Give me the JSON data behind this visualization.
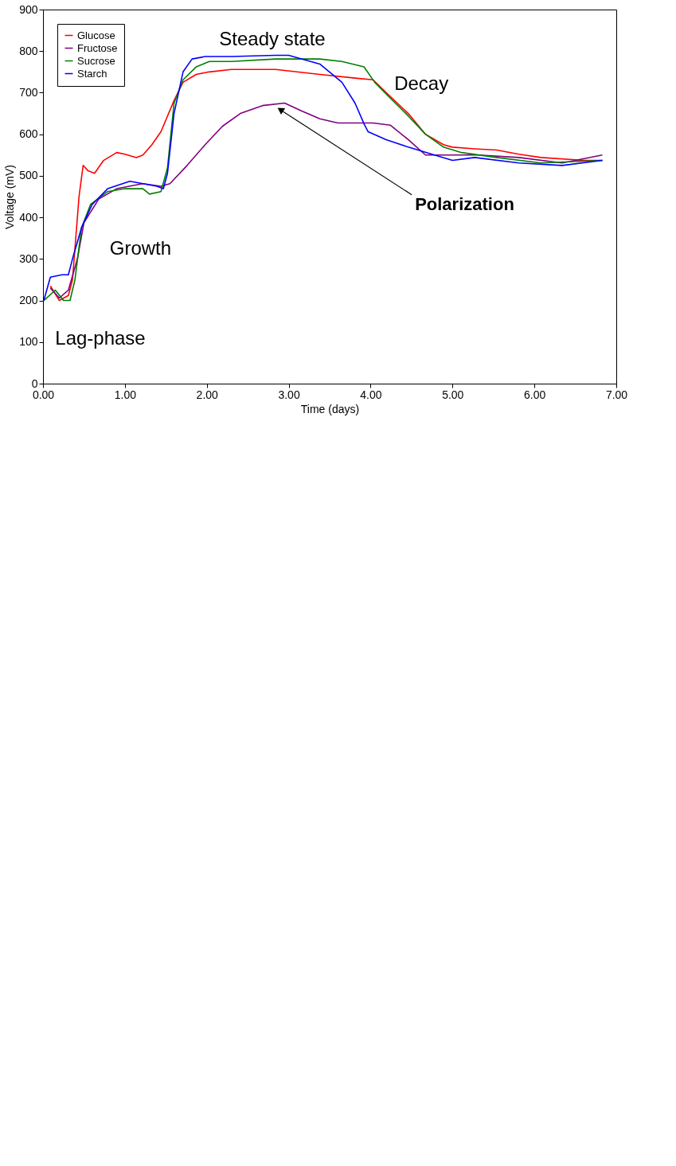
{
  "chart_data": {
    "type": "line",
    "xlabel": "Time (days)",
    "ylabel": "Voltage (mV)",
    "xlim": [
      0,
      7
    ],
    "ylim": [
      0,
      900
    ],
    "xticks": [
      {
        "value": 0,
        "label": "0.00"
      },
      {
        "value": 1,
        "label": "1.00"
      },
      {
        "value": 2,
        "label": "2.00"
      },
      {
        "value": 3,
        "label": "3.00"
      },
      {
        "value": 4,
        "label": "4.00"
      },
      {
        "value": 5,
        "label": "5.00"
      },
      {
        "value": 6,
        "label": "6.00"
      },
      {
        "value": 7,
        "label": "7.00"
      }
    ],
    "yticks": [
      0,
      100,
      200,
      300,
      400,
      500,
      600,
      700,
      800,
      900
    ],
    "grid": false,
    "legend": "top left",
    "marker": "none",
    "line_style": "solid",
    "series": [
      {
        "name": "Glucose",
        "color": "#ff0000",
        "x": [
          0.09,
          0.2,
          0.31,
          0.36,
          0.44,
          0.49,
          0.55,
          0.63,
          0.74,
          0.9,
          1.0,
          1.14,
          1.22,
          1.33,
          1.44,
          1.6,
          1.71,
          1.87,
          2.03,
          2.3,
          2.84,
          3.38,
          3.81,
          4.03,
          4.19,
          4.46,
          4.67,
          4.89,
          5.0,
          5.27,
          5.54,
          5.81,
          6.08,
          6.61,
          6.83
        ],
        "values": [
          235,
          200,
          212,
          250,
          450,
          525,
          512,
          506,
          537,
          556,
          552,
          544,
          550,
          575,
          606,
          681,
          725,
          744,
          750,
          756,
          756,
          744,
          735,
          731,
          700,
          650,
          600,
          575,
          569,
          565,
          562,
          552,
          544,
          537,
          537
        ]
      },
      {
        "name": "Fructose",
        "color": "#800080",
        "x": [
          0.09,
          0.2,
          0.31,
          0.42,
          0.5,
          0.68,
          0.9,
          1.22,
          1.44,
          1.55,
          1.76,
          1.98,
          2.19,
          2.41,
          2.68,
          2.95,
          3.16,
          3.38,
          3.6,
          3.81,
          4.03,
          4.24,
          4.46,
          4.67,
          5.0,
          5.32,
          5.81,
          6.34,
          6.83
        ],
        "values": [
          230,
          206,
          225,
          300,
          387,
          444,
          469,
          481,
          475,
          481,
          525,
          575,
          619,
          650,
          669,
          675,
          656,
          637,
          627,
          627,
          627,
          622,
          587,
          550,
          550,
          550,
          544,
          531,
          550
        ]
      },
      {
        "name": "Sucrose",
        "color": "#008000",
        "x": [
          0.01,
          0.15,
          0.25,
          0.33,
          0.39,
          0.47,
          0.58,
          0.79,
          1.0,
          1.22,
          1.3,
          1.44,
          1.52,
          1.6,
          1.71,
          1.87,
          2.03,
          2.3,
          2.84,
          3.38,
          3.65,
          3.92,
          4.05,
          4.24,
          4.46,
          4.67,
          4.89,
          5.11,
          5.54,
          6.08,
          6.83
        ],
        "values": [
          200,
          225,
          200,
          200,
          250,
          375,
          431,
          462,
          469,
          469,
          456,
          462,
          519,
          675,
          731,
          762,
          775,
          775,
          781,
          781,
          775,
          762,
          725,
          687,
          644,
          600,
          569,
          556,
          544,
          531,
          537
        ]
      },
      {
        "name": "Starch",
        "color": "#0000ff",
        "x": [
          0.01,
          0.09,
          0.23,
          0.31,
          0.36,
          0.47,
          0.6,
          0.79,
          1.06,
          1.22,
          1.39,
          1.47,
          1.52,
          1.6,
          1.71,
          1.82,
          1.98,
          2.3,
          2.84,
          3.0,
          3.38,
          3.65,
          3.81,
          3.92,
          3.97,
          4.19,
          4.46,
          4.78,
          5.0,
          5.27,
          5.81,
          6.34,
          6.83
        ],
        "values": [
          200,
          256,
          262,
          262,
          300,
          375,
          431,
          469,
          487,
          481,
          475,
          469,
          506,
          650,
          750,
          781,
          787,
          787,
          790,
          790,
          769,
          725,
          675,
          625,
          606,
          587,
          569,
          550,
          537,
          544,
          531,
          525,
          537
        ]
      }
    ],
    "annotations": [
      "Lag-phase",
      "Growth",
      "Steady state",
      "Decay",
      {
        "text": "Polarization",
        "x": 2.85,
        "y": 665
      }
    ]
  }
}
